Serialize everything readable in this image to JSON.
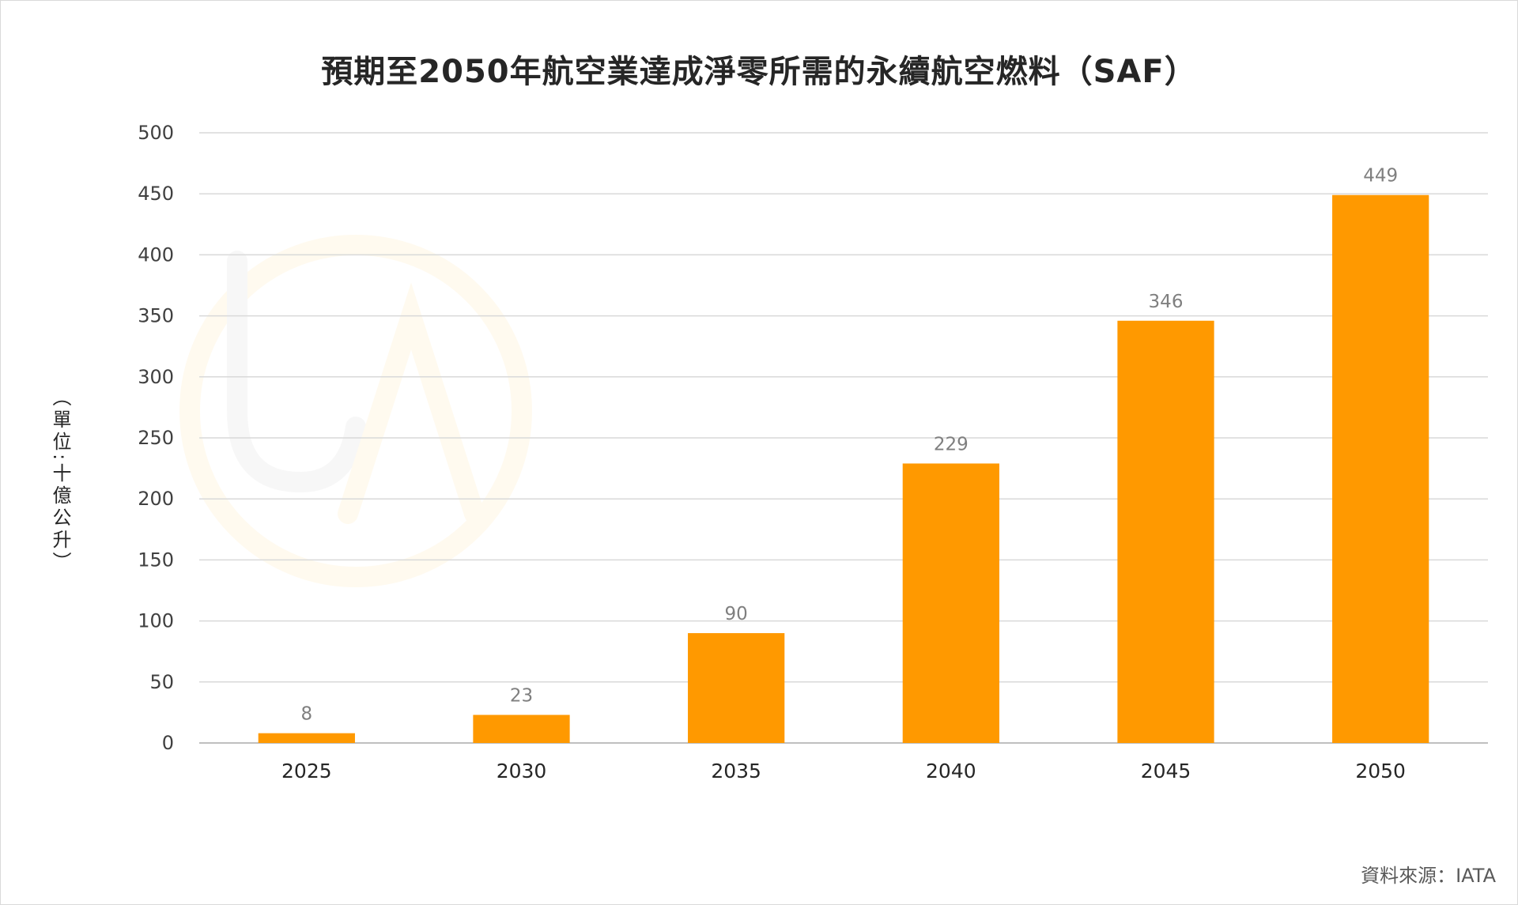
{
  "source_note": "資料來源：IATA",
  "chart_data": {
    "type": "bar",
    "title": "預期至2050年航空業達成淨零所需的永續航空燃料（SAF）",
    "xlabel": "",
    "ylabel": "（單位:十億公升）",
    "categories": [
      "2025",
      "2030",
      "2035",
      "2040",
      "2045",
      "2050"
    ],
    "series": [
      {
        "values": [
          8,
          23,
          90,
          229,
          346,
          449
        ]
      }
    ],
    "ylim": [
      0,
      500
    ],
    "yticks": [
      0,
      50,
      100,
      150,
      200,
      250,
      300,
      350,
      400,
      450,
      500
    ],
    "grid": true,
    "data_labels": true,
    "bar_color": "#ff9900",
    "gridline_color": "#d9d9d9",
    "label_color": "#7f7f7f"
  }
}
